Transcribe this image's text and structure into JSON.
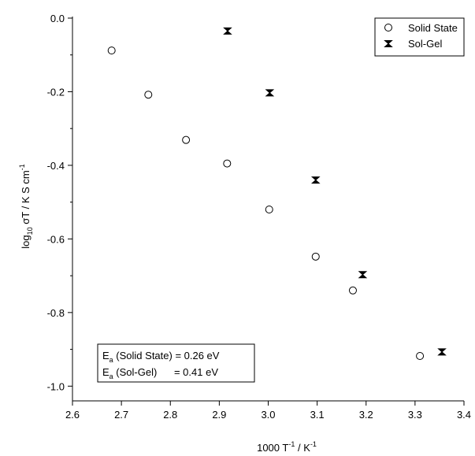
{
  "chart_data": {
    "type": "scatter",
    "series": [
      {
        "name": "Solid State",
        "marker": "open-circle",
        "x": [
          2.68,
          2.755,
          2.832,
          2.916,
          3.002,
          3.097,
          3.173,
          3.31
        ],
        "y": [
          -0.088,
          -0.208,
          -0.331,
          -0.395,
          -0.52,
          -0.648,
          -0.74,
          -0.918
        ]
      },
      {
        "name": "Sol-Gel",
        "marker": "hourglass",
        "x": [
          2.917,
          3.003,
          3.097,
          3.193,
          3.355
        ],
        "y": [
          -0.035,
          -0.203,
          -0.44,
          -0.697,
          -0.907
        ]
      }
    ],
    "xlabel": {
      "prefix": "1000 T",
      "sup": "-1",
      "mid": " / K",
      "sup2": "-1"
    },
    "ylabel": {
      "prefix": "log",
      "sub": "10",
      "mid": " σT / K S cm",
      "sup": "-1"
    },
    "xlim": [
      2.6,
      3.4
    ],
    "ylim": [
      -1.04,
      0.0
    ],
    "xticks": [
      2.6,
      2.7,
      2.8,
      2.9,
      3.0,
      3.1,
      3.2,
      3.3,
      3.4
    ],
    "xtick_labels": [
      "2.6",
      "2.7",
      "2.8",
      "2.9",
      "3.0",
      "3.1",
      "3.2",
      "3.3",
      "3.4"
    ],
    "yticks": [
      0.0,
      -0.2,
      -0.4,
      -0.6,
      -0.8,
      -1.0
    ],
    "ytick_labels": [
      "0.0",
      "-0.2",
      "-0.4",
      "-0.6",
      "-0.8",
      "-1.0"
    ],
    "grid": false,
    "legend_position": "top-right",
    "annotations": [
      {
        "symbol": "E",
        "sub": "a",
        "label": " (Solid State) = 0.26 eV"
      },
      {
        "symbol": "E",
        "sub": "a",
        "label": " (Sol-Gel)      = 0.41 eV"
      }
    ]
  }
}
